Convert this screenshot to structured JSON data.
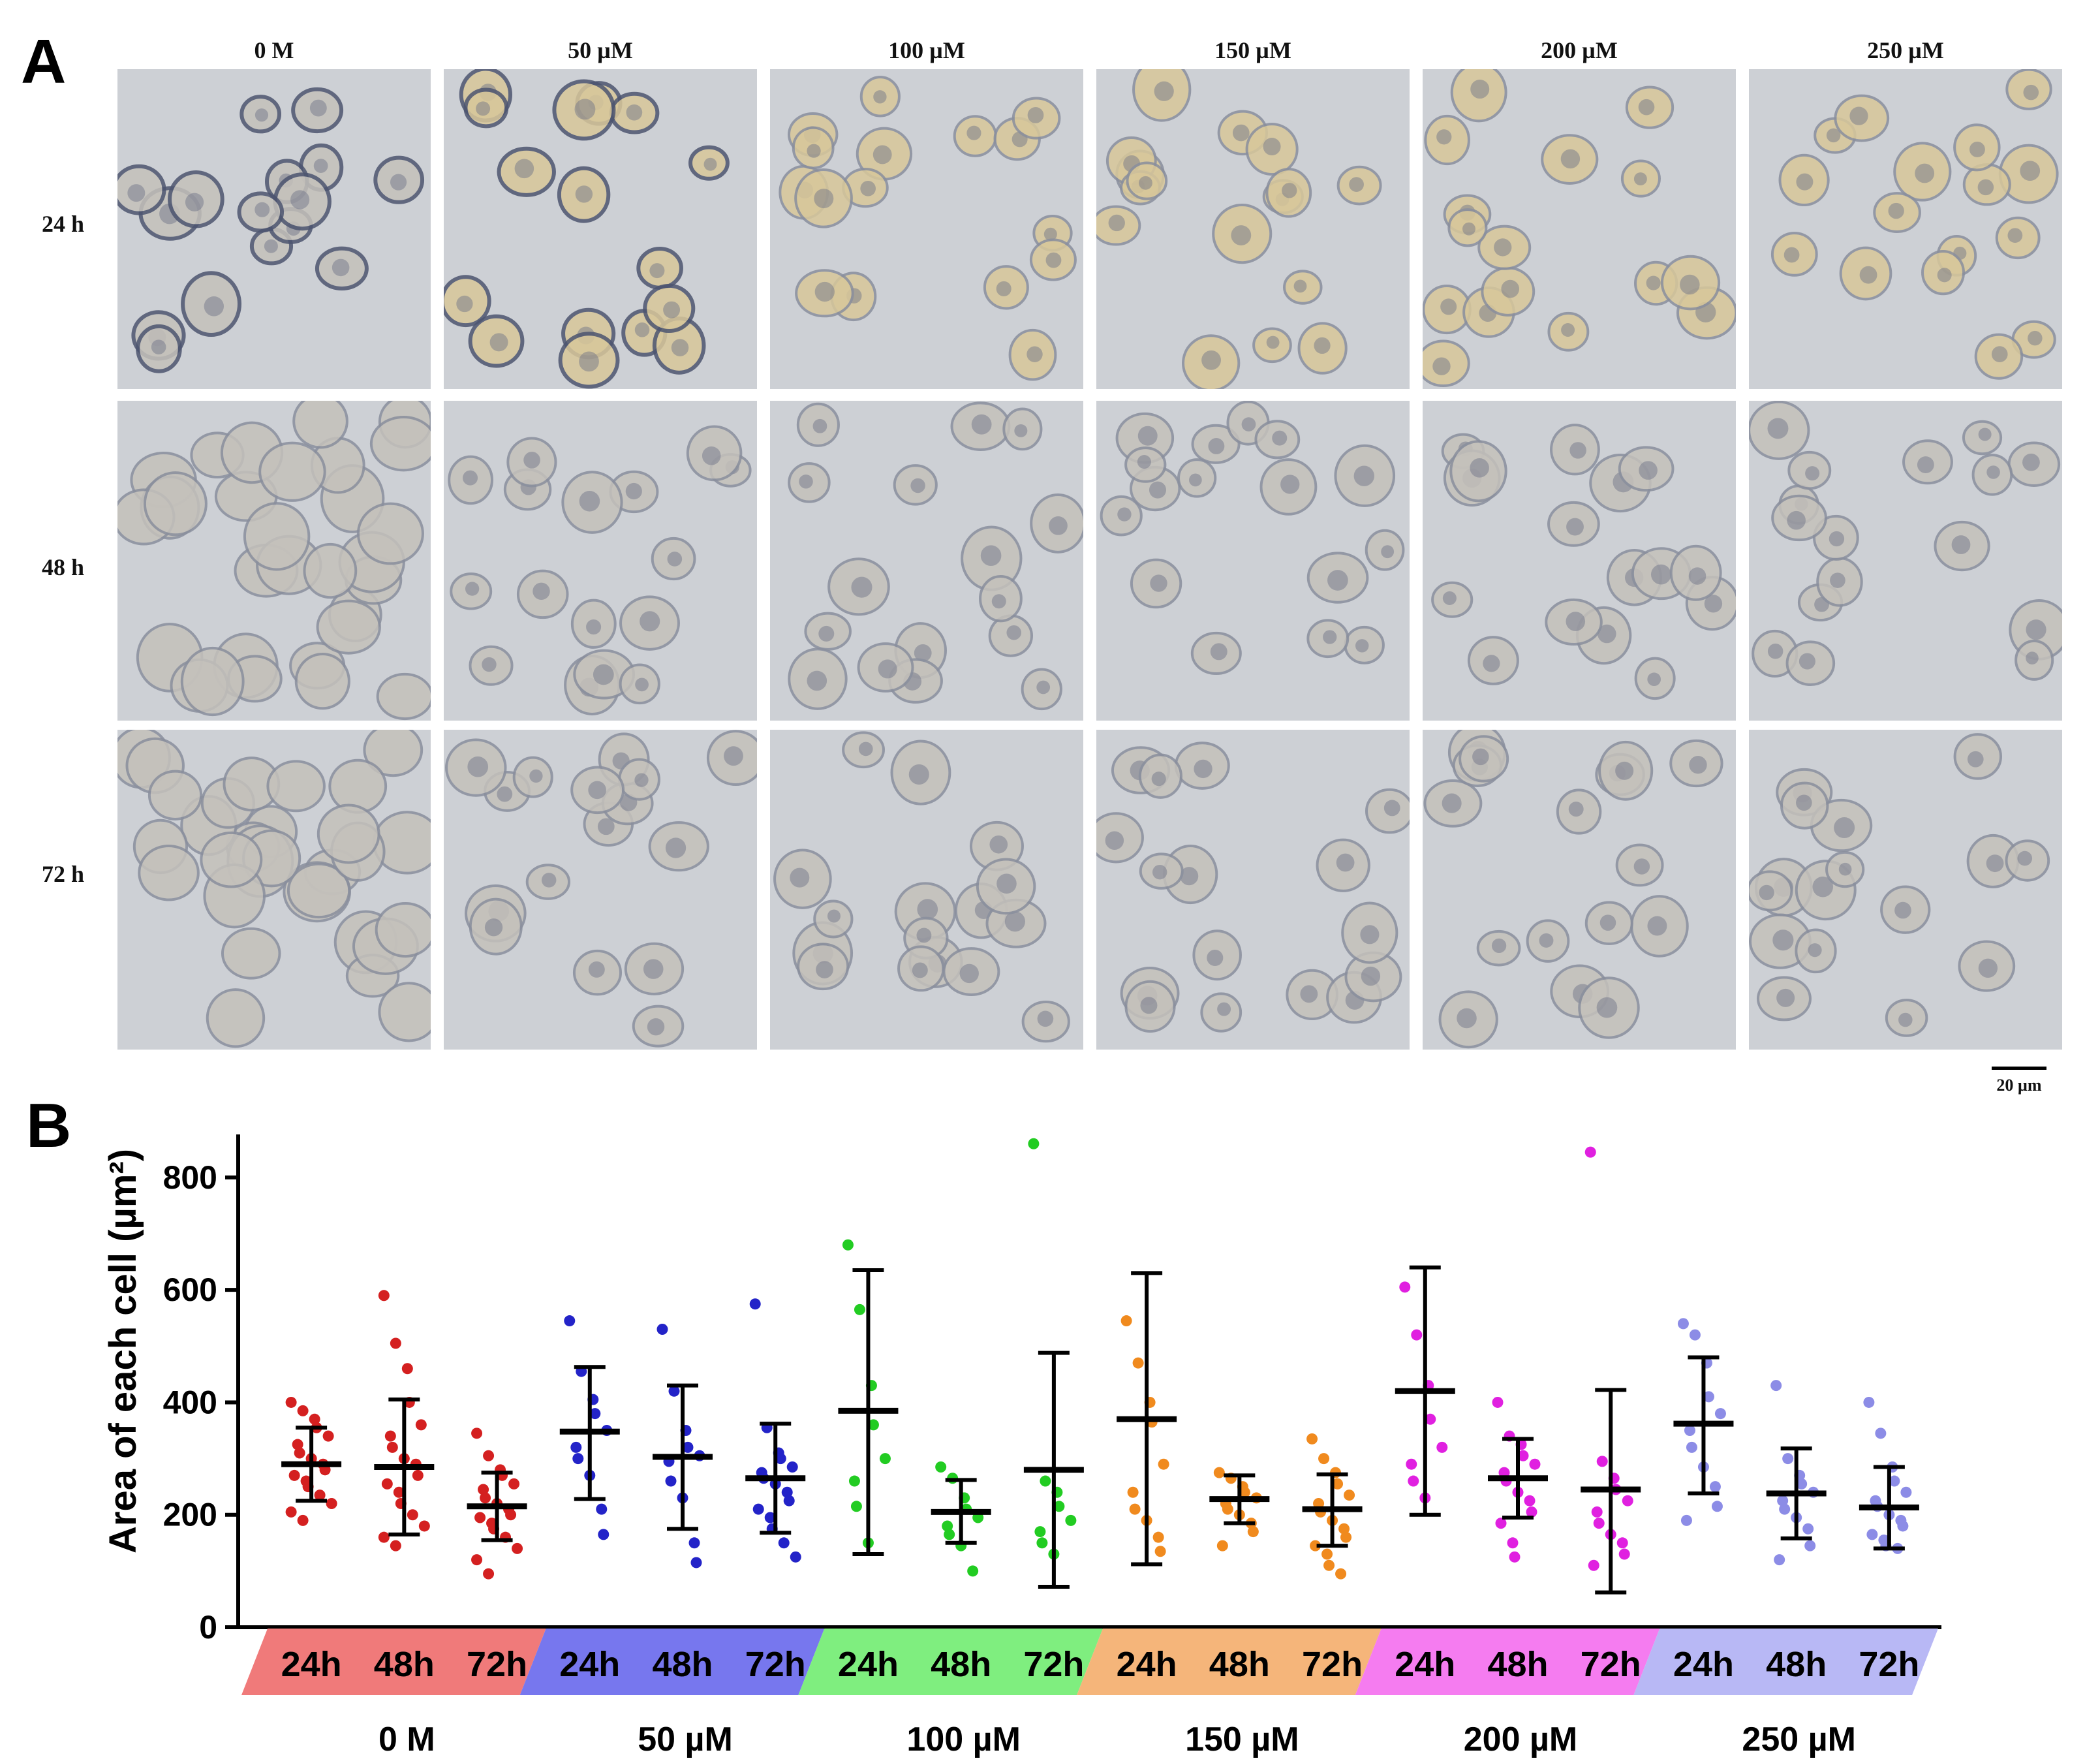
{
  "panel_a": {
    "letter": "A",
    "column_labels": [
      "0 M",
      "50 µM",
      "100 µM",
      "150 µM",
      "200 µM",
      "250 µM"
    ],
    "row_labels": [
      "24 h",
      "48 h",
      "72 h"
    ],
    "scale_bar": "20 µm"
  },
  "panel_b": {
    "letter": "B"
  },
  "chart_data": {
    "type": "scatter",
    "ylabel": "Area of each cell (µm²)",
    "ylim": [
      0,
      880
    ],
    "yticks": [
      0,
      200,
      400,
      600,
      800
    ],
    "time_labels": [
      "24h",
      "48h",
      "72h"
    ],
    "group_labels": [
      "0 M",
      "50 µM",
      "100 µM",
      "150 µM",
      "200 µM",
      "250 µM"
    ],
    "group_colors": [
      "#f07a7a",
      "#7777ee",
      "#7fee7f",
      "#f5b57a",
      "#f57cf0",
      "#b8b8f5"
    ],
    "point_colors": [
      "#d42020",
      "#2323c8",
      "#22cc22",
      "#f08a1e",
      "#e020e0",
      "#8c8ce6"
    ],
    "series": [
      {
        "group": "0 M",
        "time": "24h",
        "mean": 290,
        "sd_low": 225,
        "sd_high": 355,
        "points": [
          400,
          385,
          370,
          355,
          340,
          325,
          310,
          300,
          290,
          280,
          270,
          260,
          250,
          235,
          220,
          205,
          190
        ]
      },
      {
        "group": "0 M",
        "time": "48h",
        "mean": 285,
        "sd_low": 165,
        "sd_high": 405,
        "points": [
          590,
          505,
          460,
          400,
          360,
          340,
          320,
          300,
          290,
          270,
          255,
          240,
          220,
          200,
          180,
          160,
          145
        ]
      },
      {
        "group": "0 M",
        "time": "72h",
        "mean": 215,
        "sd_low": 155,
        "sd_high": 275,
        "points": [
          345,
          305,
          280,
          270,
          255,
          245,
          230,
          220,
          210,
          200,
          195,
          185,
          175,
          160,
          140,
          120,
          95
        ]
      },
      {
        "group": "50 µM",
        "time": "24h",
        "mean": 348,
        "sd_low": 228,
        "sd_high": 463,
        "points": [
          545,
          455,
          405,
          380,
          350,
          320,
          300,
          270,
          210,
          165
        ]
      },
      {
        "group": "50 µM",
        "time": "48h",
        "mean": 303,
        "sd_low": 175,
        "sd_high": 430,
        "points": [
          530,
          420,
          350,
          320,
          305,
          295,
          260,
          230,
          150,
          115
        ]
      },
      {
        "group": "50 µM",
        "time": "72h",
        "mean": 265,
        "sd_low": 168,
        "sd_high": 362,
        "points": [
          575,
          355,
          310,
          300,
          285,
          275,
          265,
          255,
          240,
          225,
          210,
          195,
          175,
          150,
          125
        ]
      },
      {
        "group": "100 µM",
        "time": "24h",
        "mean": 385,
        "sd_low": 130,
        "sd_high": 635,
        "points": [
          680,
          565,
          430,
          360,
          300,
          260,
          215,
          150
        ]
      },
      {
        "group": "100 µM",
        "time": "48h",
        "mean": 205,
        "sd_low": 150,
        "sd_high": 262,
        "points": [
          285,
          265,
          230,
          210,
          195,
          180,
          165,
          145,
          100
        ]
      },
      {
        "group": "100 µM",
        "time": "72h",
        "mean": 280,
        "sd_low": 72,
        "sd_high": 488,
        "points": [
          860,
          260,
          240,
          215,
          190,
          170,
          150,
          130
        ]
      },
      {
        "group": "150 µM",
        "time": "24h",
        "mean": 370,
        "sd_low": 112,
        "sd_high": 630,
        "points": [
          545,
          470,
          400,
          365,
          290,
          240,
          210,
          190,
          160,
          135
        ]
      },
      {
        "group": "150 µM",
        "time": "48h",
        "mean": 228,
        "sd_low": 185,
        "sd_high": 270,
        "points": [
          275,
          265,
          250,
          240,
          230,
          220,
          210,
          200,
          185,
          170,
          145
        ]
      },
      {
        "group": "150 µM",
        "time": "72h",
        "mean": 210,
        "sd_low": 145,
        "sd_high": 272,
        "points": [
          335,
          300,
          275,
          255,
          235,
          220,
          205,
          190,
          175,
          160,
          145,
          130,
          110,
          95
        ]
      },
      {
        "group": "200 µM",
        "time": "24h",
        "mean": 420,
        "sd_low": 200,
        "sd_high": 640,
        "points": [
          605,
          520,
          430,
          370,
          320,
          290,
          260,
          230
        ]
      },
      {
        "group": "200 µM",
        "time": "48h",
        "mean": 265,
        "sd_low": 195,
        "sd_high": 335,
        "points": [
          400,
          340,
          325,
          305,
          290,
          275,
          260,
          240,
          225,
          205,
          185,
          150,
          125
        ]
      },
      {
        "group": "200 µM",
        "time": "72h",
        "mean": 245,
        "sd_low": 62,
        "sd_high": 422,
        "points": [
          845,
          295,
          265,
          245,
          225,
          205,
          185,
          165,
          150,
          130,
          110
        ]
      },
      {
        "group": "250 µM",
        "time": "24h",
        "mean": 362,
        "sd_low": 238,
        "sd_high": 480,
        "points": [
          540,
          520,
          470,
          410,
          380,
          350,
          320,
          285,
          250,
          215,
          190
        ]
      },
      {
        "group": "250 µM",
        "time": "48h",
        "mean": 238,
        "sd_low": 158,
        "sd_high": 318,
        "points": [
          430,
          300,
          270,
          255,
          240,
          225,
          210,
          195,
          175,
          145,
          120
        ]
      },
      {
        "group": "250 µM",
        "time": "72h",
        "mean": 213,
        "sd_low": 140,
        "sd_high": 285,
        "points": [
          400,
          345,
          285,
          260,
          240,
          225,
          215,
          200,
          190,
          180,
          165,
          155,
          145,
          140
        ]
      }
    ]
  }
}
